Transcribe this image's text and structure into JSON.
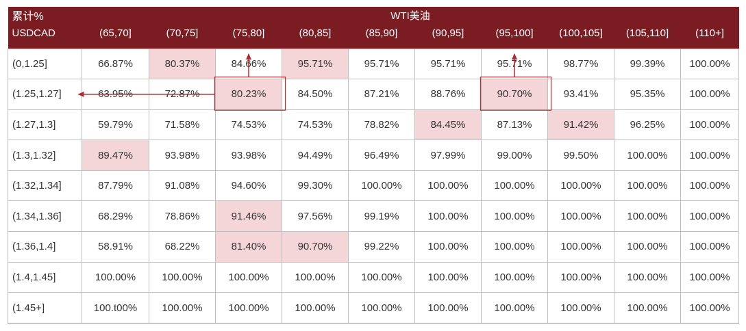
{
  "chart_data": {
    "type": "table",
    "corner_label": "累计%",
    "column_group_label": "WTI美油",
    "row_axis_label": "USDCAD",
    "columns": [
      "(65,70]",
      "(70,75]",
      "(75,80]",
      "(80,85]",
      "(85,90]",
      "(90,95]",
      "(95,100]",
      "(100,105]",
      "(105,110]",
      "(110+]"
    ],
    "rows": [
      {
        "label": "(0,1.25]",
        "values": [
          "66.87%",
          "80.37%",
          "84.66%",
          "95.71%",
          "95.71%",
          "95.71%",
          "95.71%",
          "98.77%",
          "99.39%",
          "100.00%"
        ],
        "highlight": [
          1,
          3
        ]
      },
      {
        "label": "(1.25,1.27]",
        "values": [
          "63.95%",
          "72.87%",
          "80.23%",
          "84.50%",
          "87.21%",
          "88.76%",
          "90.70%",
          "93.41%",
          "95.35%",
          "100.00%"
        ],
        "highlight": [
          2,
          6
        ]
      },
      {
        "label": "(1.27,1.3]",
        "values": [
          "59.79%",
          "71.58%",
          "74.53%",
          "74.53%",
          "78.82%",
          "84.45%",
          "87.13%",
          "91.42%",
          "96.25%",
          "100.00%"
        ],
        "highlight": [
          5,
          7
        ]
      },
      {
        "label": "(1.3,1.32]",
        "values": [
          "89.47%",
          "93.98%",
          "93.98%",
          "94.49%",
          "96.49%",
          "97.99%",
          "99.00%",
          "99.50%",
          "100.00%",
          "100.00%"
        ],
        "highlight": [
          0
        ]
      },
      {
        "label": "(1.32,1.34]",
        "values": [
          "87.79%",
          "91.08%",
          "94.60%",
          "99.30%",
          "100.00%",
          "100.00%",
          "100.00%",
          "100.00%",
          "100.00%",
          "100.00%"
        ],
        "highlight": []
      },
      {
        "label": "(1.34,1.36]",
        "values": [
          "68.29%",
          "78.86%",
          "91.46%",
          "97.56%",
          "99.19%",
          "100.00%",
          "100.00%",
          "100.00%",
          "100.00%",
          "100.00%"
        ],
        "highlight": [
          2
        ]
      },
      {
        "label": "(1.36,1.4]",
        "values": [
          "58.91%",
          "68.22%",
          "81.40%",
          "90.70%",
          "99.22%",
          "100.00%",
          "100.00%",
          "100.00%",
          "100.00%",
          "100.00%"
        ],
        "highlight": [
          2,
          3
        ]
      },
      {
        "label": "(1.4,1.45]",
        "values": [
          "100.00%",
          "100.00%",
          "100.00%",
          "100.00%",
          "100.00%",
          "100.00%",
          "100.00%",
          "100.00%",
          "100.00%",
          "100.00%"
        ],
        "highlight": []
      },
      {
        "label": "(1.45+]",
        "values": [
          "100.t00%",
          "100.00%",
          "100.00%",
          "100.00%",
          "100.00%",
          "100.00%",
          "100.00%",
          "100.00%",
          "100.00%",
          "100.00%"
        ],
        "highlight": []
      }
    ],
    "boxed_cells": [
      [
        1,
        2
      ],
      [
        1,
        6
      ]
    ],
    "arrows": [
      {
        "from_cell": [
          1,
          2
        ],
        "direction": "up"
      },
      {
        "from_cell": [
          1,
          6
        ],
        "direction": "up"
      },
      {
        "from_cell": [
          1,
          2
        ],
        "direction": "left"
      }
    ],
    "colors": {
      "header_bg": "#7a1c21",
      "header_text": "#ffffff",
      "highlight_bg": "#f5d6d8",
      "annotation": "#b22a30",
      "grid": "#bfbfbf"
    }
  }
}
